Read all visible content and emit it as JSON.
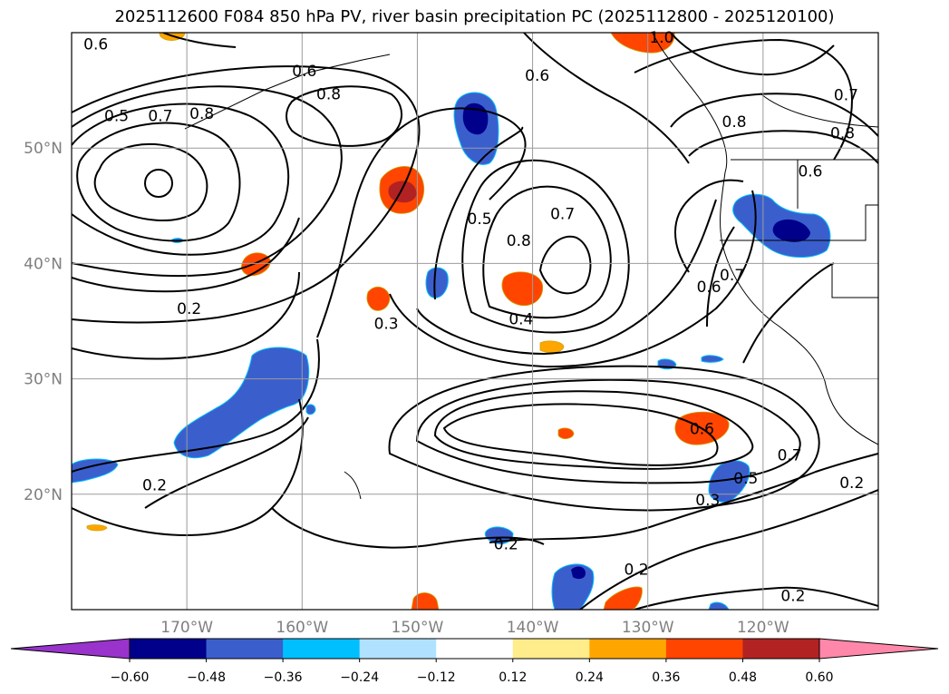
{
  "title": "2025112600 F084 850 hPa PV, river basin precipitation PC (2025112800 - 2025120100)",
  "map": {
    "lon_range": [
      -180,
      -110
    ],
    "lat_range": [
      10,
      60
    ],
    "lat_ticks": [
      {
        "value": 50,
        "label": "50°N"
      },
      {
        "value": 40,
        "label": "40°N"
      },
      {
        "value": 30,
        "label": "30°N"
      },
      {
        "value": 20,
        "label": "20°N"
      }
    ],
    "lon_ticks": [
      {
        "value": -170,
        "label": "170°W"
      },
      {
        "value": -160,
        "label": "160°W"
      },
      {
        "value": -150,
        "label": "150°W"
      },
      {
        "value": -140,
        "label": "140°W"
      },
      {
        "value": -130,
        "label": "130°W"
      },
      {
        "value": -120,
        "label": "120°W"
      }
    ],
    "grid": true
  },
  "contour_labels": [
    {
      "text": "0.6",
      "lon": -177.9,
      "lat": 59.0
    },
    {
      "text": "1.0",
      "lon": -128.8,
      "lat": 59.6
    },
    {
      "text": "0.6",
      "lon": -159.8,
      "lat": 56.7
    },
    {
      "text": "0.6",
      "lon": -139.6,
      "lat": 56.3
    },
    {
      "text": "0.8",
      "lon": -157.7,
      "lat": 54.7
    },
    {
      "text": "0.7",
      "lon": -112.8,
      "lat": 54.6
    },
    {
      "text": "0.5",
      "lon": -176.1,
      "lat": 52.8
    },
    {
      "text": "0.7",
      "lon": -172.3,
      "lat": 52.8
    },
    {
      "text": "0.8",
      "lon": -168.7,
      "lat": 53.0
    },
    {
      "text": "0.8",
      "lon": -122.5,
      "lat": 52.3
    },
    {
      "text": "0.8",
      "lon": -113.1,
      "lat": 51.3
    },
    {
      "text": "0.6",
      "lon": -115.9,
      "lat": 48.0
    },
    {
      "text": "0.7",
      "lon": -137.4,
      "lat": 44.3
    },
    {
      "text": "0.5",
      "lon": -144.6,
      "lat": 43.9
    },
    {
      "text": "0.8",
      "lon": -141.2,
      "lat": 42.0
    },
    {
      "text": "0.7",
      "lon": -122.7,
      "lat": 39.0
    },
    {
      "text": "0.6",
      "lon": -124.7,
      "lat": 38.0
    },
    {
      "text": "0.2",
      "lon": -169.8,
      "lat": 36.1
    },
    {
      "text": "0.3",
      "lon": -152.7,
      "lat": 34.8
    },
    {
      "text": "0.4",
      "lon": -141.0,
      "lat": 35.2
    },
    {
      "text": "0.6",
      "lon": -125.3,
      "lat": 25.7
    },
    {
      "text": "0.7",
      "lon": -117.7,
      "lat": 23.4
    },
    {
      "text": "0.5",
      "lon": -121.5,
      "lat": 21.4
    },
    {
      "text": "0.3",
      "lon": -124.8,
      "lat": 19.5
    },
    {
      "text": "0.2",
      "lon": -172.8,
      "lat": 20.8
    },
    {
      "text": "0.2",
      "lon": -112.3,
      "lat": 21.0
    },
    {
      "text": "0.2",
      "lon": -142.3,
      "lat": 15.7
    },
    {
      "text": "0.2",
      "lon": -131.0,
      "lat": 13.5
    },
    {
      "text": "0.2",
      "lon": -117.4,
      "lat": 11.2
    }
  ],
  "colorbar": {
    "colors": [
      "#9933cc",
      "#00008b",
      "#3a5fcd",
      "#00bfff",
      "#b0e2ff",
      "#ffffff",
      "#ffec8b",
      "#ffa500",
      "#ff4500",
      "#b22222",
      "#ff88aa"
    ],
    "tick_labels": [
      "−0.60",
      "−0.48",
      "−0.36",
      "−0.24",
      "−0.12",
      "0.12",
      "0.24",
      "0.36",
      "0.48",
      "0.60"
    ]
  }
}
